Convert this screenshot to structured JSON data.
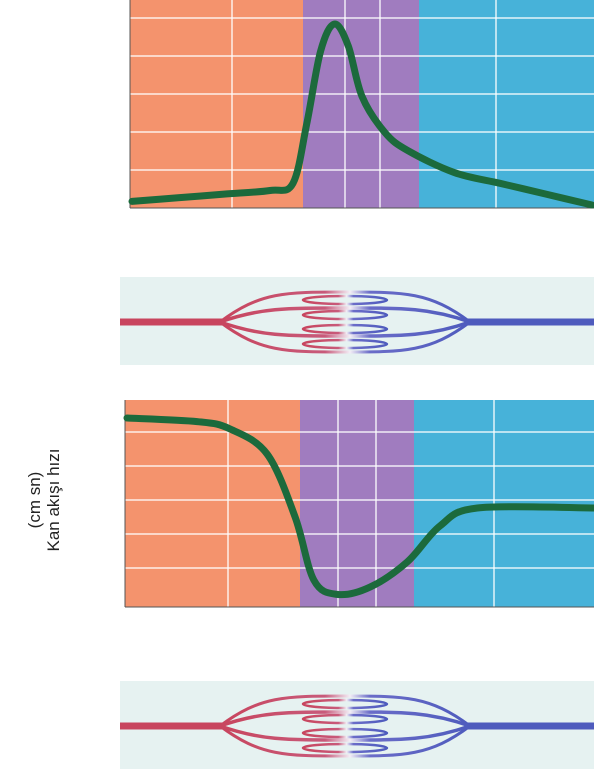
{
  "ylabel": {
    "unit": "(cm sn)",
    "title": "Kan akışı hızı"
  },
  "colors": {
    "arteries": "#f4936d",
    "capillaries": "#a07cbf",
    "veins": "#47b2d9",
    "curve": "#1c6a3c",
    "grid": "#ffffff",
    "vessel_bg": "#e6f2f1",
    "artery_vessel": "#c8455e",
    "vein_vessel": "#4e5bbd"
  },
  "chart_data": [
    {
      "type": "line",
      "title": "",
      "xlabel": "",
      "ylabel": "",
      "regions": [
        "arteries",
        "capillaries",
        "veins"
      ],
      "series": [
        {
          "values": [
            [
              0,
              2
            ],
            [
              10,
              4
            ],
            [
              20,
              6
            ],
            [
              30,
              8
            ],
            [
              35,
              12
            ],
            [
              38,
              45
            ],
            [
              41,
              85
            ],
            [
              44,
              100
            ],
            [
              47,
              88
            ],
            [
              50,
              60
            ],
            [
              55,
              40
            ],
            [
              60,
              30
            ],
            [
              70,
              18
            ],
            [
              80,
              12
            ],
            [
              90,
              6
            ],
            [
              100,
              0
            ]
          ]
        }
      ]
    },
    {
      "type": "line",
      "title": "",
      "xlabel": "",
      "ylabel": "",
      "regions": [
        "arteries",
        "capillaries",
        "veins"
      ],
      "series": [
        {
          "values": [
            [
              0,
              100
            ],
            [
              15,
              98
            ],
            [
              22,
              94
            ],
            [
              30,
              80
            ],
            [
              36,
              45
            ],
            [
              40,
              10
            ],
            [
              45,
              2
            ],
            [
              52,
              6
            ],
            [
              60,
              20
            ],
            [
              67,
              40
            ],
            [
              75,
              50
            ],
            [
              100,
              50
            ]
          ]
        }
      ]
    }
  ],
  "icons": {
    "vessel_network_top": "capillary-network-diagram",
    "vessel_network_bottom": "capillary-network-diagram"
  }
}
